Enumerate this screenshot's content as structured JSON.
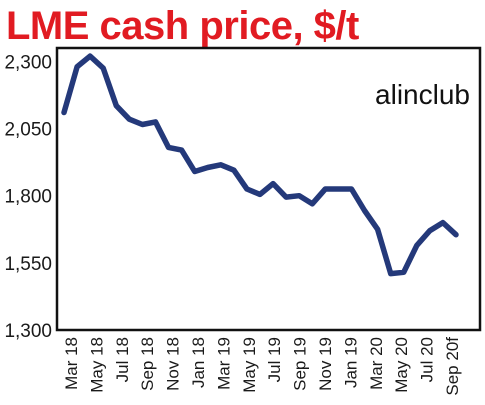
{
  "colors": {
    "title": "#e11b22",
    "line": "#24397a",
    "plot_border": "#111111",
    "background": "#ffffff"
  },
  "chart_data": {
    "type": "line",
    "title": "LME cash price, $/t",
    "annotation": "alinclub",
    "xlabel": "",
    "ylabel": "",
    "ylim": [
      1300,
      2350
    ],
    "y_ticks": [
      "2,300",
      "2,050",
      "1,800",
      "1,550",
      "1,300"
    ],
    "y_tick_values": [
      2300,
      2050,
      1800,
      1550,
      1300
    ],
    "x_tick_labels": [
      "Mar 18",
      "May 18",
      "Jul 18",
      "Sep 18",
      "Nov 18",
      "Jan 18",
      "Mar 19",
      "May 19",
      "Jul 19",
      "Sep 19",
      "Nov 19",
      "Jan 19",
      "Mar 20",
      "May 20",
      "Jul 20",
      "Sep 20f"
    ],
    "grid": false,
    "series": [
      {
        "values": [
          2110,
          2280,
          2320,
          2275,
          2135,
          2085,
          2065,
          2075,
          1980,
          1970,
          1890,
          1905,
          1915,
          1895,
          1825,
          1805,
          1845,
          1795,
          1800,
          1770,
          1825,
          1825,
          1825,
          1745,
          1675,
          1510,
          1515,
          1615,
          1670,
          1700,
          1655
        ]
      }
    ]
  }
}
